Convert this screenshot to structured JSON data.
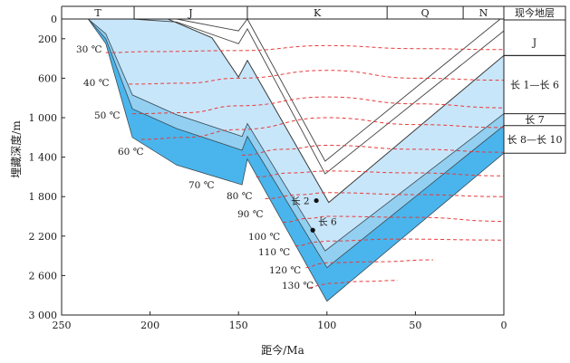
{
  "chart_data": {
    "type": "line",
    "xlabel": "距今/Ma",
    "ylabel": "埋藏深度/m",
    "x_ticks": [
      250,
      200,
      150,
      100,
      50,
      0
    ],
    "y_ticks": [
      "0",
      "200",
      "600",
      "1 000",
      "1 400",
      "1 800",
      "2 200",
      "2 600",
      "3 000"
    ],
    "y_tick_values": [
      0,
      200,
      600,
      1000,
      1400,
      1800,
      2200,
      2600,
      3000
    ],
    "xlim": [
      250,
      0
    ],
    "ylim": [
      0,
      3000
    ],
    "periods": [
      {
        "label": "T",
        "start": 250,
        "end": 209
      },
      {
        "label": "J",
        "start": 209,
        "end": 145
      },
      {
        "label": "K",
        "start": 145,
        "end": 66
      },
      {
        "label": "Q",
        "start": 66,
        "end": 23
      },
      {
        "label": "N",
        "start": 23,
        "end": 0
      }
    ],
    "strata_column": {
      "title": "现今地层",
      "layers": [
        {
          "label": "J",
          "top": 100,
          "bottom": 370
        },
        {
          "label": "长 1—长 6",
          "top": 370,
          "bottom": 960
        },
        {
          "label": "长 7",
          "top": 960,
          "bottom": 1080
        },
        {
          "label": "长 8—长 10",
          "top": 1080,
          "bottom": 1360
        }
      ]
    },
    "burial_curves": [
      {
        "x": [
          235,
          225,
          210,
          185,
          148,
          145,
          101,
          0
        ],
        "y": [
          0,
          150,
          770,
          970,
          1190,
          1060,
          2350,
          960
        ],
        "fill": "#c8e6fa"
      },
      {
        "x": [
          235,
          225,
          210,
          185,
          148,
          145,
          100,
          0
        ],
        "y": [
          0,
          200,
          910,
          1110,
          1330,
          1190,
          2520,
          1080
        ],
        "fill": "#93cff0"
      },
      {
        "x": [
          235,
          225,
          210,
          185,
          148,
          145,
          100,
          0
        ],
        "y": [
          0,
          250,
          1200,
          1480,
          1680,
          1420,
          2860,
          1360
        ],
        "fill": "#4ab5ec"
      }
    ],
    "outline_curves": [
      {
        "x": [
          228,
          210,
          185,
          150,
          145,
          101,
          2
        ],
        "y": [
          0,
          0,
          0,
          120,
          0,
          1440,
          0
        ]
      },
      {
        "x": [
          210,
          185,
          150,
          145,
          101,
          0
        ],
        "y": [
          0,
          30,
          250,
          100,
          1570,
          120
        ]
      },
      {
        "x": [
          190,
          165,
          150,
          145,
          99,
          0
        ],
        "y": [
          0,
          190,
          590,
          420,
          1860,
          370
        ]
      }
    ],
    "isotherms": [
      {
        "label": "30 ℃",
        "x": [
          225,
          200,
          150,
          100,
          50,
          0
        ],
        "y": [
          340,
          330,
          320,
          270,
          300,
          310
        ]
      },
      {
        "label": "40 ℃",
        "x": [
          212,
          180,
          150,
          100,
          50,
          0
        ],
        "y": [
          660,
          650,
          600,
          520,
          600,
          620
        ]
      },
      {
        "label": "50 ℃",
        "x": [
          210,
          180,
          150,
          100,
          50,
          0
        ],
        "y": [
          960,
          950,
          880,
          790,
          860,
          900
        ]
      },
      {
        "label": "60 ℃",
        "x": [
          205,
          180,
          150,
          100,
          50,
          0
        ],
        "y": [
          1220,
          1200,
          1120,
          1000,
          1070,
          1100
        ]
      },
      {
        "label": "70 ℃",
        "x": [
          148,
          125,
          100,
          50,
          0
        ],
        "y": [
          1380,
          1320,
          1280,
          1320,
          1350
        ]
      },
      {
        "label": "80 ℃",
        "x": [
          140,
          120,
          100,
          50,
          0
        ],
        "y": [
          1600,
          1560,
          1540,
          1560,
          1590
        ]
      },
      {
        "label": "90 ℃",
        "x": [
          135,
          115,
          100,
          50,
          0
        ],
        "y": [
          1820,
          1780,
          1760,
          1780,
          1800
        ]
      },
      {
        "label": "100 ℃",
        "x": [
          125,
          110,
          100,
          50,
          0
        ],
        "y": [
          2060,
          2020,
          2000,
          2010,
          2050
        ]
      },
      {
        "label": "110 ℃",
        "x": [
          118,
          105,
          100,
          60,
          0
        ],
        "y": [
          2300,
          2260,
          2250,
          2230,
          2240
        ]
      },
      {
        "label": "120 ℃",
        "x": [
          112,
          103,
          100,
          70,
          40
        ],
        "y": [
          2520,
          2480,
          2470,
          2460,
          2440
        ]
      },
      {
        "label": "130 ℃",
        "x": [
          110,
          102,
          100,
          80,
          60
        ],
        "y": [
          2720,
          2690,
          2680,
          2660,
          2650
        ]
      }
    ],
    "points": [
      {
        "label": "长 2",
        "x": 106,
        "y": 1840
      },
      {
        "label": "长 6",
        "x": 108,
        "y": 2140
      }
    ]
  }
}
